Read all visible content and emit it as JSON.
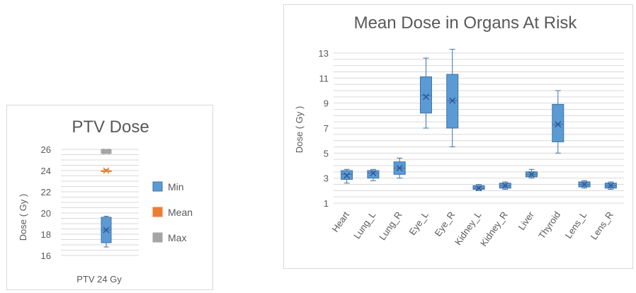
{
  "colors": {
    "box_fill": "#5b9bd5",
    "box_stroke": "#41719c",
    "mean_marker": "#2f5597",
    "whisker": "#3f6ea6",
    "grid": "#d9d9d9",
    "text": "#595959",
    "mean_series": "#ed7d31",
    "max_series": "#a5a5a5",
    "min_series": "#5b9bd5"
  },
  "chart_data": [
    {
      "type": "box",
      "title": "PTV Dose",
      "xlabel": "",
      "ylabel": "Dose ( Gy )",
      "ylim": [
        16,
        26
      ],
      "yticks": [
        16,
        18,
        20,
        22,
        24,
        26
      ],
      "grid": true,
      "legend": "right",
      "categories": [
        "PTV 24 Gy"
      ],
      "series": [
        {
          "name": "Min",
          "color": "#5b9bd5",
          "min": 16.8,
          "q1": 17.2,
          "median": 18.4,
          "mean": 18.4,
          "q3": 19.6,
          "max": 19.7
        },
        {
          "name": "Mean",
          "color": "#ed7d31",
          "min": 23.9,
          "q1": 23.9,
          "median": 24.0,
          "mean": 24.0,
          "q3": 24.0,
          "max": 24.1
        },
        {
          "name": "Max",
          "color": "#a5a5a5",
          "min": 25.6,
          "q1": 25.6,
          "median": 25.8,
          "mean": 25.8,
          "q3": 26.0,
          "max": 26.0
        }
      ]
    },
    {
      "type": "box",
      "title": "Mean Dose in Organs At Risk",
      "xlabel": "",
      "ylabel": "Dose ( Gy )",
      "ylim": [
        1,
        13
      ],
      "yticks": [
        1,
        3,
        5,
        7,
        9,
        11,
        13
      ],
      "grid": true,
      "categories": [
        "Heart",
        "Lung_L",
        "Lung_R",
        "Eye_L",
        "Eye_R",
        "Kidney_L",
        "Kidney_R",
        "Liver",
        "Thyroid",
        "Lens_L",
        "Lens_R"
      ],
      "series": [
        {
          "name": "",
          "boxes": [
            {
              "min": 2.6,
              "q1": 2.9,
              "median": 3.3,
              "mean": 3.2,
              "q3": 3.6,
              "max": 3.7
            },
            {
              "min": 2.8,
              "q1": 3.0,
              "median": 3.4,
              "mean": 3.4,
              "q3": 3.6,
              "max": 3.7
            },
            {
              "min": 3.0,
              "q1": 3.3,
              "median": 3.8,
              "mean": 3.8,
              "q3": 4.3,
              "max": 4.6
            },
            {
              "min": 7.0,
              "q1": 8.2,
              "median": 9.6,
              "mean": 9.5,
              "q3": 11.1,
              "max": 12.6
            },
            {
              "min": 5.5,
              "q1": 7.0,
              "median": 9.2,
              "mean": 9.2,
              "q3": 11.3,
              "max": 13.3
            },
            {
              "min": 2.0,
              "q1": 2.1,
              "median": 2.2,
              "mean": 2.2,
              "q3": 2.4,
              "max": 2.5
            },
            {
              "min": 2.1,
              "q1": 2.2,
              "median": 2.4,
              "mean": 2.4,
              "q3": 2.6,
              "max": 2.7
            },
            {
              "min": 3.0,
              "q1": 3.1,
              "median": 3.3,
              "mean": 3.3,
              "q3": 3.5,
              "max": 3.7
            },
            {
              "min": 5.0,
              "q1": 5.9,
              "median": 7.3,
              "mean": 7.3,
              "q3": 8.9,
              "max": 10.0
            },
            {
              "min": 2.2,
              "q1": 2.3,
              "median": 2.5,
              "mean": 2.5,
              "q3": 2.7,
              "max": 2.8
            },
            {
              "min": 2.1,
              "q1": 2.2,
              "median": 2.4,
              "mean": 2.4,
              "q3": 2.6,
              "max": 2.7
            }
          ]
        }
      ]
    }
  ]
}
